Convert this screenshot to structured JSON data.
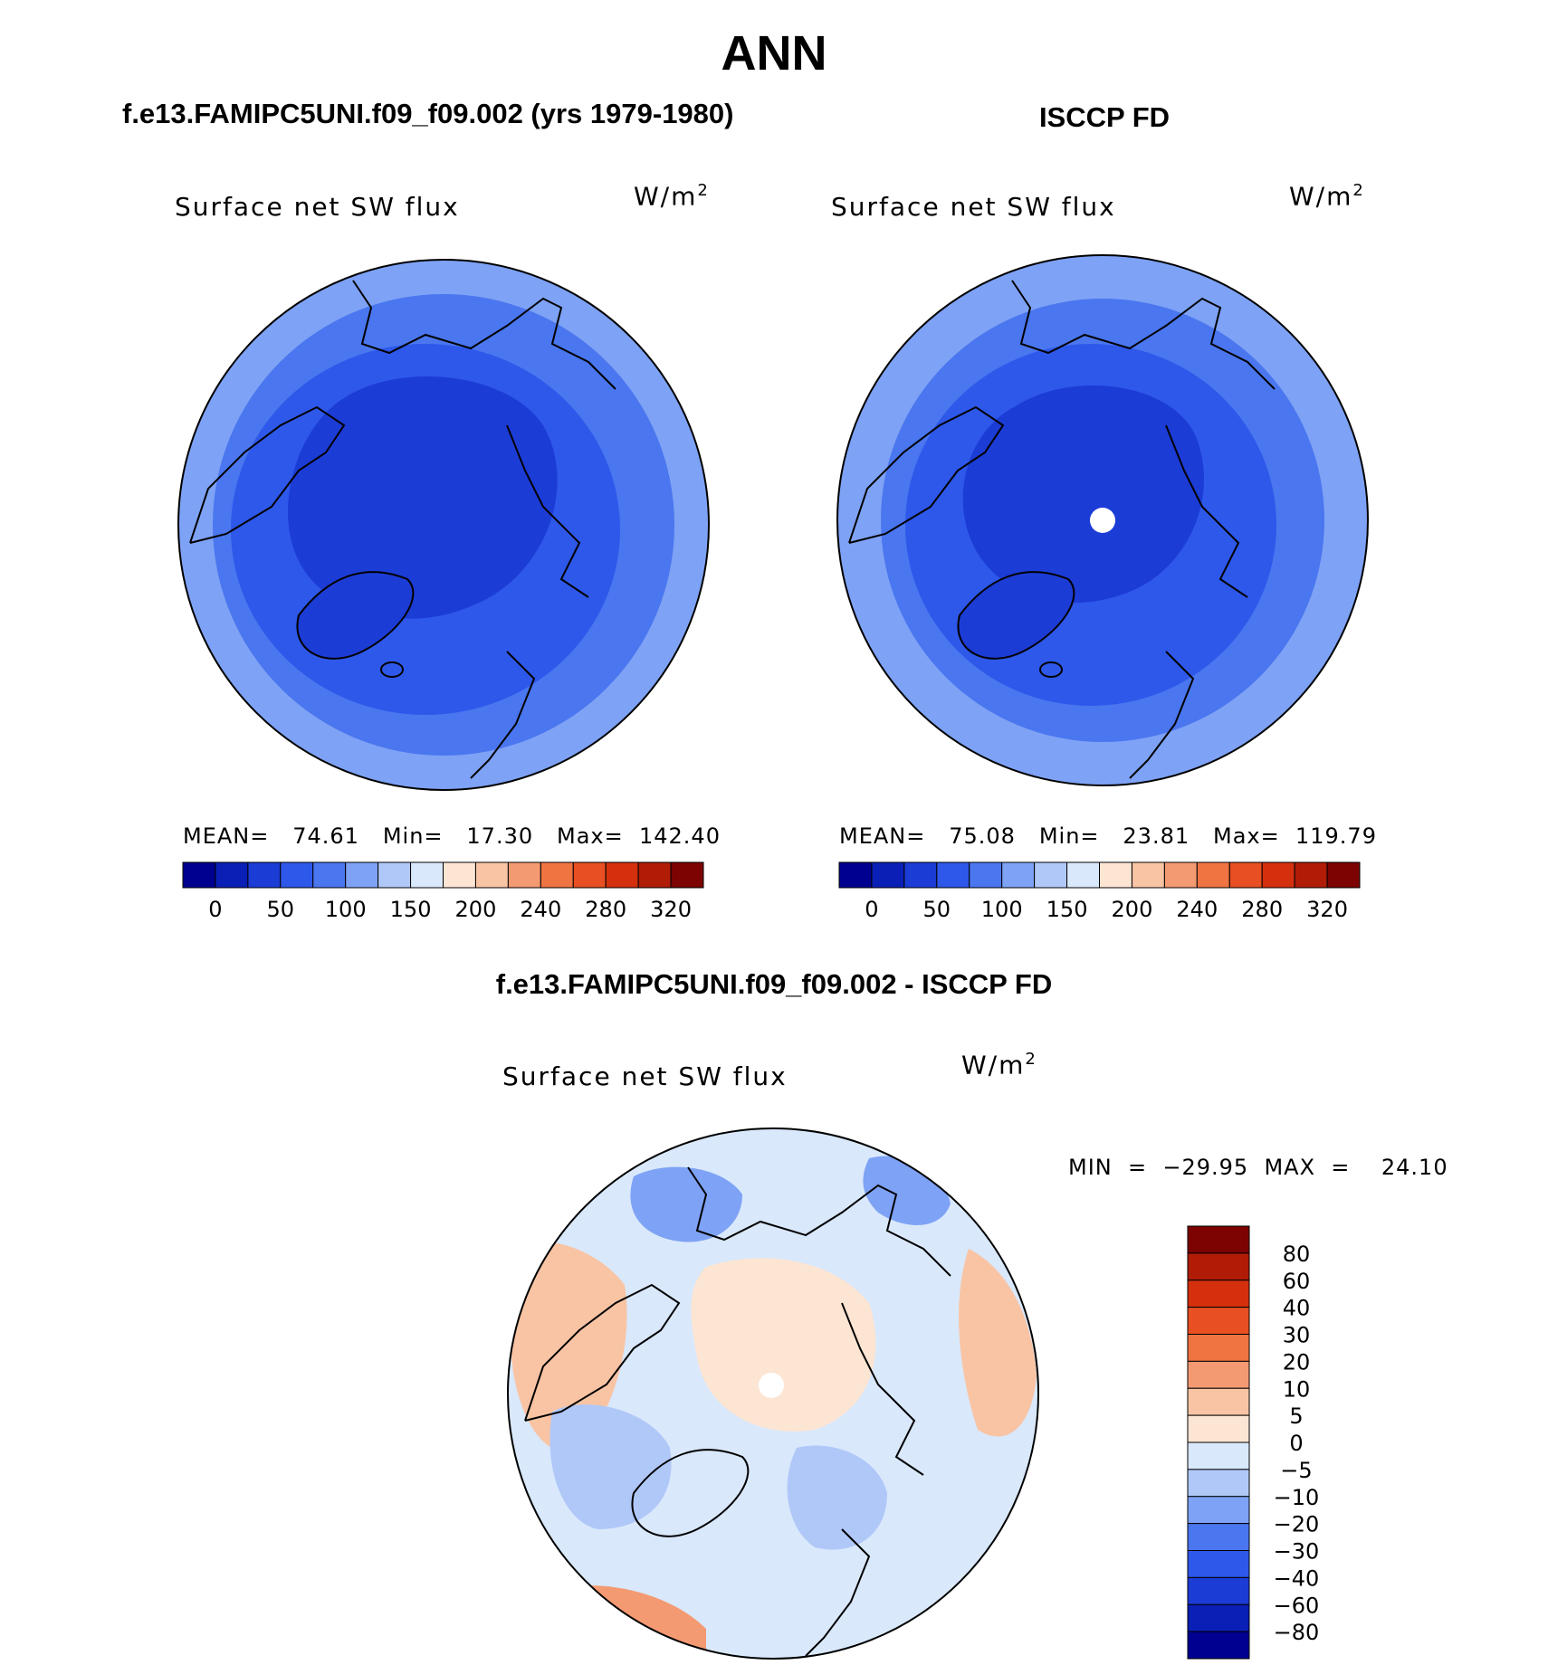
{
  "figure": {
    "title": "ANN"
  },
  "panels": {
    "left": {
      "title": "f.e13.FAMIPC5UNI.f09_f09.002 (yrs 1979-1980)",
      "variable": "Surface net SW flux",
      "units_base": "W/m",
      "units_exp": "2",
      "stats": "MEAN=   74.61   Min=   17.30   Max=  142.40"
    },
    "right": {
      "title": "ISCCP FD",
      "variable": "Surface net SW flux",
      "units_base": "W/m",
      "units_exp": "2",
      "stats": "MEAN=   75.08   Min=   23.81   Max=  119.79"
    },
    "diff": {
      "title": "f.e13.FAMIPC5UNI.f09_f09.002 - ISCCP FD",
      "variable": "Surface net SW flux",
      "units_base": "W/m",
      "units_exp": "2",
      "stats": "MIN  =  −29.95  MAX  =    24.10"
    }
  },
  "colorbars": {
    "main": {
      "tick_labels": [
        "0",
        "50",
        "100",
        "150",
        "200",
        "240",
        "280",
        "320"
      ],
      "colors": [
        "#000090",
        "#0a1fb5",
        "#1c3cd6",
        "#2e58ea",
        "#4a76ef",
        "#7ea2f5",
        "#b0c8f8",
        "#d9e8fb",
        "#fde5d3",
        "#f9c4a4",
        "#f49a72",
        "#ef7442",
        "#e84f22",
        "#d4300d",
        "#b01c06",
        "#7d0303"
      ]
    },
    "diff": {
      "tick_labels": [
        "80",
        "60",
        "40",
        "30",
        "20",
        "10",
        "5",
        "0",
        "−5",
        "−10",
        "−20",
        "−30",
        "−40",
        "−60",
        "−80"
      ],
      "colors": [
        "#7d0303",
        "#b01c06",
        "#d4300d",
        "#e84f22",
        "#ef7442",
        "#f49a72",
        "#f9c4a4",
        "#fde5d3",
        "#d9e8fb",
        "#b0c8f8",
        "#7ea2f5",
        "#4a76ef",
        "#2e58ea",
        "#1c3cd6",
        "#0a1fb5",
        "#000090"
      ]
    }
  },
  "map_colors": {
    "deep": "#1c3cd6",
    "mid": "#2e58ea",
    "light": "#4a76ef",
    "pale": "#7ea2f5",
    "diff_base": "#d9e8fb",
    "diff_warm": "#fde5d3",
    "diff_warm2": "#f9c4a4",
    "diff_warm3": "#f49a72",
    "diff_cool": "#b0c8f8",
    "diff_cool2": "#7ea2f5"
  }
}
